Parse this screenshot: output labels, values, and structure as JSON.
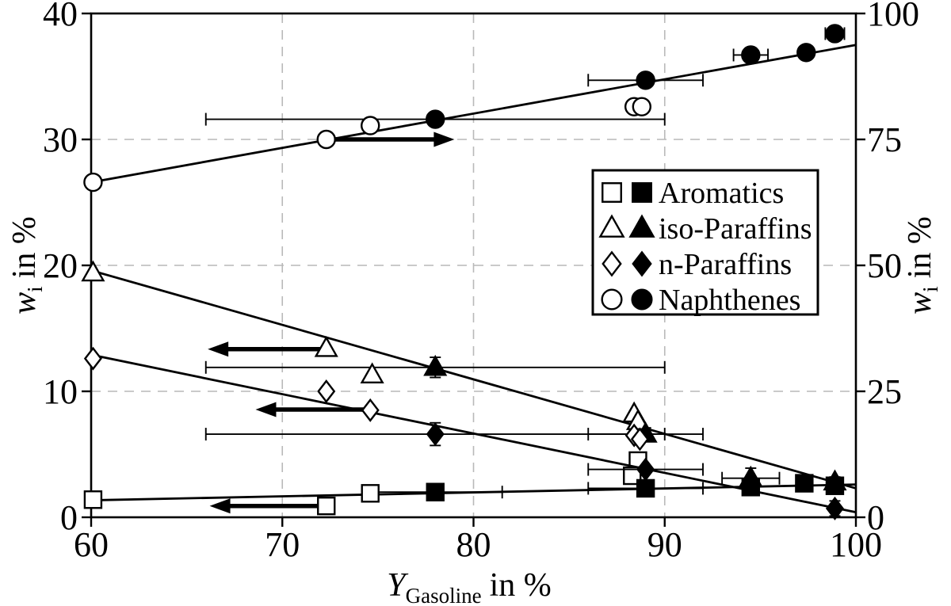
{
  "figure": {
    "background": "#ffffff",
    "ink": "#000000",
    "grid_color": "#b9b9b9"
  },
  "axes": {
    "x": {
      "label_var": "Y",
      "label_sub": "Gasoline",
      "label_rest": "in %",
      "range": [
        60,
        100
      ],
      "ticks": [
        "60",
        "70",
        "80",
        "90",
        "100"
      ],
      "tick_values": [
        60,
        70,
        80,
        90,
        100
      ],
      "gridlines": [
        70,
        80,
        90
      ]
    },
    "y_left": {
      "label_var": "w",
      "label_sub": "i",
      "label_rest": "in %",
      "range": [
        0,
        40
      ],
      "ticks": [
        "0",
        "10",
        "20",
        "30",
        "40"
      ],
      "tick_values": [
        0,
        10,
        20,
        30,
        40
      ],
      "gridlines": [
        10,
        20,
        30
      ]
    },
    "y_right": {
      "label_var": "w",
      "label_sub": "i",
      "label_rest": "in %",
      "range": [
        0,
        100
      ],
      "ticks": [
        "0",
        "25",
        "50",
        "75",
        "100"
      ],
      "tick_values": [
        0,
        25,
        50,
        75,
        100
      ]
    }
  },
  "chart_data": {
    "type": "scatter",
    "title": "",
    "xlabel": "Y_Gasoline in %",
    "ylabel_left": "w_i in %",
    "ylabel_right": "w_i in %",
    "xlim": [
      60,
      100
    ],
    "ylim_left": [
      0,
      40
    ],
    "ylim_right": [
      0,
      100
    ],
    "grid": true,
    "legend_position": "upper-right",
    "series": [
      {
        "name": "Aromatics",
        "marker": "square",
        "axis": "left",
        "open_points": [
          {
            "x": 60.1,
            "y": 1.4
          },
          {
            "x": 72.3,
            "y": 0.9
          },
          {
            "x": 74.6,
            "y": 1.9
          },
          {
            "x": 88.6,
            "y": 4.5
          },
          {
            "x": 88.3,
            "y": 3.3
          }
        ],
        "filled_points": [
          {
            "x": 78.0,
            "y": 2.0,
            "xerr": 3.5,
            "yerr": 0.4
          },
          {
            "x": 89.0,
            "y": 2.3,
            "xerr": 3.0,
            "yerr": 0.5
          },
          {
            "x": 94.5,
            "y": 2.4
          },
          {
            "x": 97.3,
            "y": 2.7,
            "yerr": 0.5
          },
          {
            "x": 98.9,
            "y": 2.5,
            "yerr": 0.4
          }
        ],
        "trend": {
          "x1": 60,
          "y1": 1.35,
          "x2": 100,
          "y2": 2.6
        },
        "arrow": {
          "dir": "left",
          "y": 0.9,
          "from_x": 72.1,
          "to_x": 66.2
        }
      },
      {
        "name": "iso-Paraffins",
        "marker": "triangle",
        "axis": "left",
        "open_points": [
          {
            "x": 60.1,
            "y": 19.4
          },
          {
            "x": 72.3,
            "y": 13.4
          },
          {
            "x": 74.7,
            "y": 11.3
          },
          {
            "x": 88.4,
            "y": 8.2
          },
          {
            "x": 88.6,
            "y": 7.6
          }
        ],
        "filled_points": [
          {
            "x": 78.0,
            "y": 11.9,
            "xerr": 12.0,
            "yerr": 0.8
          },
          {
            "x": 89.0,
            "y": 6.6,
            "xerr": 3.0,
            "yerr": 0.5
          },
          {
            "x": 94.5,
            "y": 3.1,
            "xerr": 1.5,
            "yerr": 0.8
          },
          {
            "x": 98.9,
            "y": 2.8,
            "yerr": 0.4
          }
        ],
        "trend": {
          "x1": 60,
          "y1": 19.6,
          "x2": 100,
          "y2": 2.3
        },
        "arrow": {
          "dir": "left",
          "y": 13.35,
          "from_x": 72.0,
          "to_x": 66.1
        }
      },
      {
        "name": "n-Paraffins",
        "marker": "diamond",
        "axis": "left",
        "open_points": [
          {
            "x": 60.1,
            "y": 12.6
          },
          {
            "x": 72.3,
            "y": 10.0
          },
          {
            "x": 74.6,
            "y": 8.5
          },
          {
            "x": 88.4,
            "y": 6.5
          },
          {
            "x": 88.7,
            "y": 6.2
          }
        ],
        "filled_points": [
          {
            "x": 78.0,
            "y": 6.6,
            "xerr": 12.0,
            "yerr": 0.9
          },
          {
            "x": 89.0,
            "y": 3.8,
            "xerr": 3.0
          },
          {
            "x": 98.9,
            "y": 0.7,
            "yerr": 0.6
          }
        ],
        "trend": {
          "x1": 60,
          "y1": 12.9,
          "x2": 100,
          "y2": 0.4
        },
        "arrow": {
          "dir": "left",
          "y": 8.55,
          "from_x": 74.4,
          "to_x": 68.6
        }
      },
      {
        "name": "Naphthenes",
        "marker": "circle",
        "axis": "left",
        "open_points": [
          {
            "x": 60.1,
            "y": 26.6
          },
          {
            "x": 72.3,
            "y": 30.0
          },
          {
            "x": 74.6,
            "y": 31.1
          },
          {
            "x": 88.4,
            "y": 32.6
          },
          {
            "x": 88.8,
            "y": 32.6
          }
        ],
        "filled_points": [
          {
            "x": 78.0,
            "y": 31.6,
            "xerr": 12.0
          },
          {
            "x": 89.0,
            "y": 34.7,
            "xerr": 3.0
          },
          {
            "x": 94.5,
            "y": 36.7,
            "xerr": 0.9
          },
          {
            "x": 97.4,
            "y": 36.9
          },
          {
            "x": 98.9,
            "y": 38.4,
            "xerr": 0.5
          }
        ],
        "trend": {
          "x1": 60,
          "y1": 26.6,
          "x2": 100,
          "y2": 37.5
        },
        "arrow": {
          "dir": "right",
          "y": 30.0,
          "from_x": 72.6,
          "to_x": 79.0
        }
      }
    ]
  }
}
